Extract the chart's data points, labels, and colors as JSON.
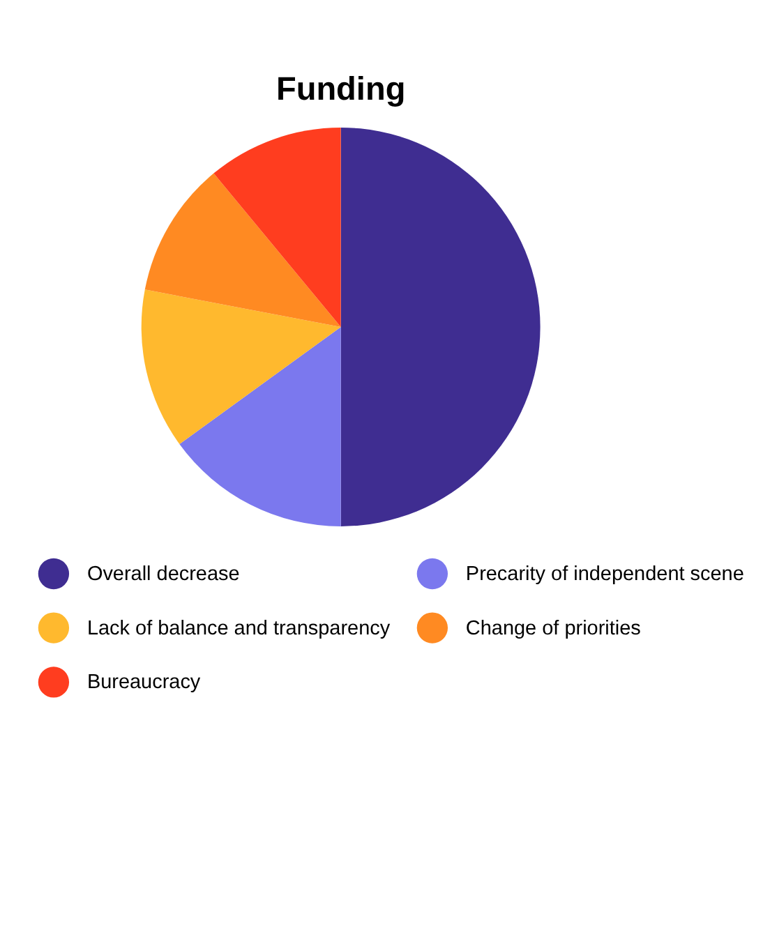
{
  "chart_data": {
    "type": "pie",
    "title": "Funding",
    "categories": [
      "Overall decrease",
      "Precarity of independent scene",
      "Lack of balance and transparency",
      "Change of priorities",
      "Bureaucracy"
    ],
    "values": [
      50,
      15,
      13,
      11,
      11
    ],
    "colors": [
      "#3f2d91",
      "#7b78ee",
      "#ffb92e",
      "#ff8a22",
      "#ff3d1f"
    ],
    "legend": "bottom"
  }
}
